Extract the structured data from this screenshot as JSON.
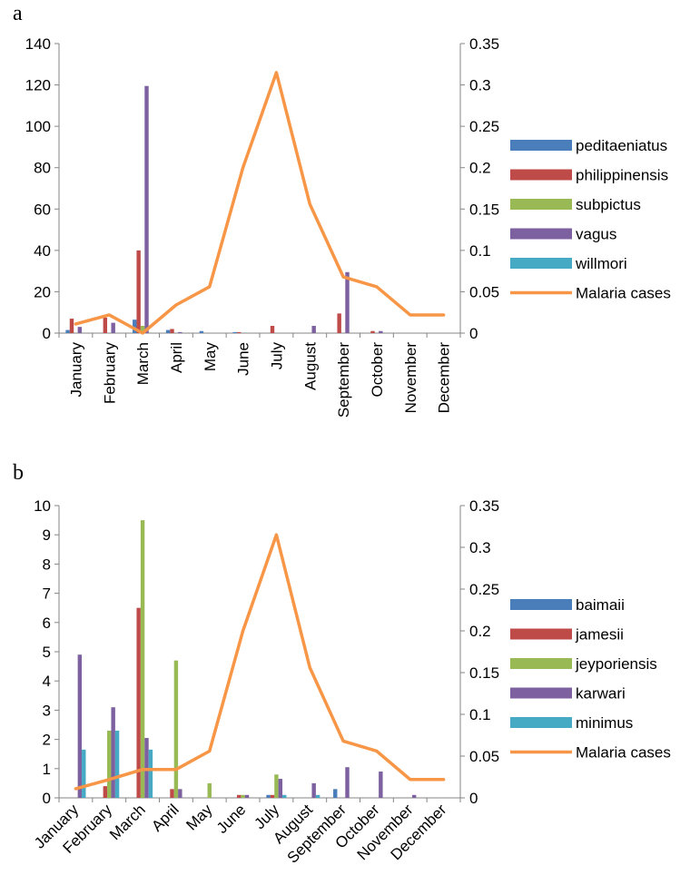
{
  "panels": [
    {
      "label": "a"
    },
    {
      "label": "b"
    }
  ],
  "chart_data": [
    {
      "type": "bar",
      "title": "",
      "xlabel": "",
      "ylabel": "",
      "categories": [
        "January",
        "February",
        "March",
        "April",
        "May",
        "June",
        "July",
        "August",
        "September",
        "October",
        "November",
        "December"
      ],
      "ylim": [
        0,
        140
      ],
      "yticks": [
        "0",
        "20",
        "40",
        "60",
        "80",
        "100",
        "120",
        "140"
      ],
      "y2lim": [
        0,
        0.35
      ],
      "y2ticks": [
        "0",
        "0.05",
        "0.1",
        "0.15",
        "0.2",
        "0.25",
        "0.3",
        "0.35"
      ],
      "legend_position": "right",
      "series": [
        {
          "name": "peditaeniatus",
          "color": "#4a7ebb",
          "values": [
            1.5,
            0,
            6.5,
            1.5,
            1,
            0.5,
            0,
            0,
            0,
            0,
            0,
            0
          ]
        },
        {
          "name": "philippinensis",
          "color": "#be4b48",
          "values": [
            7,
            7.5,
            40,
            2,
            0,
            0.5,
            3.5,
            0,
            9.5,
            1,
            0,
            0
          ]
        },
        {
          "name": "subpictus",
          "color": "#98b954",
          "values": [
            0,
            0,
            3.5,
            0,
            0,
            0,
            0,
            0,
            0,
            0,
            0,
            0
          ]
        },
        {
          "name": "vagus",
          "color": "#7d60a0",
          "values": [
            3,
            5,
            119.5,
            0.5,
            0,
            0,
            0,
            3.5,
            29.5,
            1,
            0,
            0
          ]
        },
        {
          "name": "willmori",
          "color": "#46aac5",
          "values": [
            0,
            0,
            0,
            0,
            0,
            0,
            0,
            0,
            0,
            0,
            0,
            0
          ]
        },
        {
          "name": "Malaria cases",
          "color": "#f79646",
          "kind": "line",
          "axis": "right",
          "values": [
            0.011,
            0.022,
            0.0,
            0.034,
            0.056,
            0.2,
            0.315,
            0.156,
            0.068,
            0.056,
            0.022,
            0.022
          ]
        }
      ]
    },
    {
      "type": "bar",
      "title": "",
      "xlabel": "",
      "ylabel": "",
      "categories": [
        "January",
        "February",
        "March",
        "April",
        "May",
        "June",
        "July",
        "August",
        "September",
        "October",
        "November",
        "December"
      ],
      "ylim": [
        0,
        10
      ],
      "yticks": [
        "0",
        "1",
        "2",
        "3",
        "4",
        "5",
        "6",
        "7",
        "8",
        "9",
        "10"
      ],
      "y2lim": [
        0,
        0.35
      ],
      "y2ticks": [
        "0",
        "0.05",
        "0.1",
        "0.15",
        "0.2",
        "0.25",
        "0.3",
        "0.35"
      ],
      "legend_position": "right",
      "series": [
        {
          "name": "baimaii",
          "color": "#4a7ebb",
          "values": [
            0,
            0,
            0,
            0,
            0,
            0,
            0.1,
            0,
            0.3,
            0,
            0,
            0
          ]
        },
        {
          "name": "jamesii",
          "color": "#be4b48",
          "values": [
            0,
            0.4,
            6.5,
            0.3,
            0,
            0.1,
            0.1,
            0,
            0,
            0,
            0,
            0
          ]
        },
        {
          "name": "jeyporiensis",
          "color": "#98b954",
          "values": [
            0,
            2.3,
            9.5,
            4.7,
            0.5,
            0.1,
            0.8,
            0,
            0,
            0,
            0,
            0
          ]
        },
        {
          "name": "karwari",
          "color": "#7d60a0",
          "values": [
            4.9,
            3.1,
            2.05,
            0.3,
            0,
            0.1,
            0.65,
            0.5,
            1.05,
            0.9,
            0.1,
            0
          ]
        },
        {
          "name": "minimus",
          "color": "#46aac5",
          "values": [
            1.65,
            2.3,
            1.65,
            0,
            0,
            0,
            0.1,
            0.1,
            0,
            0,
            0,
            0
          ]
        },
        {
          "name": "Malaria cases",
          "color": "#f79646",
          "kind": "line",
          "axis": "right",
          "values": [
            0.011,
            0.022,
            0.034,
            0.034,
            0.056,
            0.2,
            0.315,
            0.156,
            0.068,
            0.056,
            0.022,
            0.022
          ]
        }
      ]
    }
  ]
}
